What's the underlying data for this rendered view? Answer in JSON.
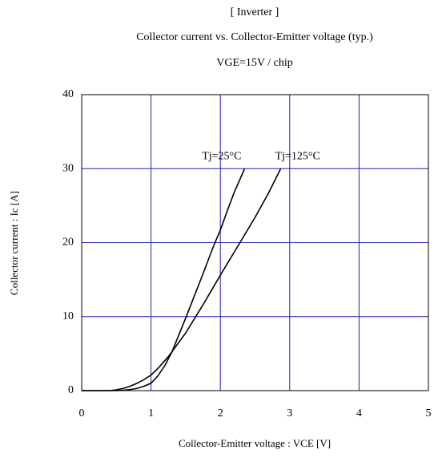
{
  "chart_data": {
    "type": "line",
    "title": "[ Inverter ]",
    "subtitles": [
      "Collector current vs. Collector-Emitter voltage (typ.)",
      "VGE=15V / chip"
    ],
    "xlabel": "Collector-Emitter voltage : VCE [V]",
    "ylabel": "Collector current : Ic [A]",
    "xlim": [
      0,
      5
    ],
    "xticks": [
      0,
      1,
      2,
      3,
      4,
      5
    ],
    "ylim": [
      0,
      40
    ],
    "yticks": [
      0,
      10,
      20,
      30,
      40
    ],
    "grid": true,
    "grid_color": "#2020b0",
    "series": [
      {
        "name": "Tj=25°C",
        "color": "#000000",
        "x": [
          0,
          0.5,
          0.6,
          0.7,
          0.8,
          0.9,
          1.0,
          1.1,
          1.2,
          1.3,
          1.4,
          1.5,
          1.6,
          1.75,
          1.9,
          2.0,
          2.1,
          2.2,
          2.35
        ],
        "values": [
          0,
          0,
          0.05,
          0.15,
          0.3,
          0.6,
          1.0,
          2.0,
          3.4,
          5.2,
          7.5,
          9.8,
          12.2,
          15.8,
          19.5,
          21.7,
          24.3,
          26.8,
          30
        ]
      },
      {
        "name": "Tj=125°C",
        "color": "#000000",
        "x": [
          0,
          0.4,
          0.5,
          0.6,
          0.7,
          0.8,
          0.9,
          1.0,
          1.1,
          1.25,
          1.5,
          1.75,
          2.0,
          2.25,
          2.5,
          2.7,
          2.87
        ],
        "values": [
          0,
          0,
          0.1,
          0.3,
          0.6,
          1.0,
          1.5,
          2.1,
          3.0,
          4.6,
          7.8,
          11.6,
          15.6,
          19.5,
          23.4,
          26.8,
          30
        ]
      }
    ]
  }
}
